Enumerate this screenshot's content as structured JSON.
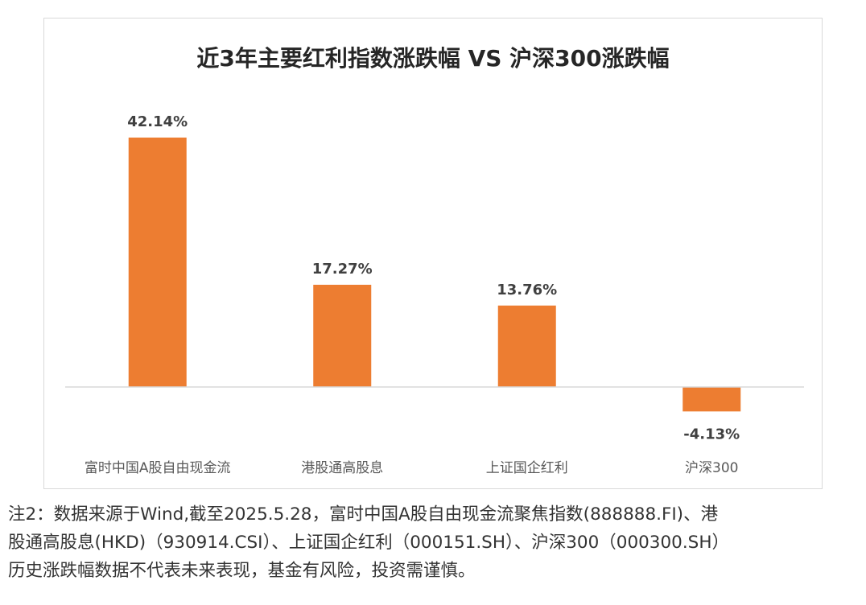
{
  "chart_data": {
    "type": "bar",
    "title": "近3年主要红利指数涨跌幅 VS 沪深300涨跌幅",
    "categories": [
      "富时中国A股自由现金流",
      "港股通高股息",
      "上证国企红利",
      "沪深300"
    ],
    "values": [
      42.14,
      17.27,
      13.76,
      -4.13
    ],
    "data_labels": [
      "42.14%",
      "17.27%",
      "13.76%",
      "-4.13%"
    ],
    "ylim": [
      -8,
      46
    ],
    "grid": false,
    "legend": "none",
    "bar_color": "#ED7D31"
  },
  "footnote": {
    "lines": [
      "注2：数据来源于Wind,截至2025.5.28，富时中国A股自由现金流聚焦指数(888888.FI)、港",
      "股通高股息(HKD)（930914.CSI）、上证国企红利（000151.SH）、沪深300（000300.SH）",
      "历史涨跌幅数据不代表未来表现，基金有风险，投资需谨慎。"
    ]
  }
}
